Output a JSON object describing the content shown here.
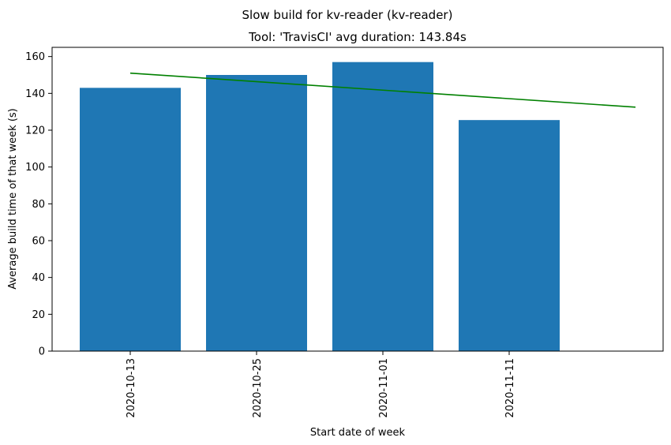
{
  "chart_data": {
    "type": "bar",
    "suptitle": "Slow build for kv-reader (kv-reader)",
    "title": "Tool: 'TravisCI' avg duration: 143.84s",
    "xlabel": "Start date of week",
    "ylabel": "Average build time of that week (s)",
    "categories": [
      "2020-10-13",
      "2020-10-25",
      "2020-11-01",
      "2020-11-11"
    ],
    "values": [
      143,
      150,
      157,
      125.5
    ],
    "ylim": [
      0,
      165
    ],
    "yticks": [
      0,
      20,
      40,
      60,
      80,
      100,
      120,
      140,
      160
    ],
    "bar_color": "#1f77b4",
    "trendline": {
      "color": "#008000",
      "x_start_index": 0,
      "x_end_index": 4,
      "y_start": 151,
      "y_end": 132.5
    },
    "grid": false,
    "legend": "none"
  }
}
